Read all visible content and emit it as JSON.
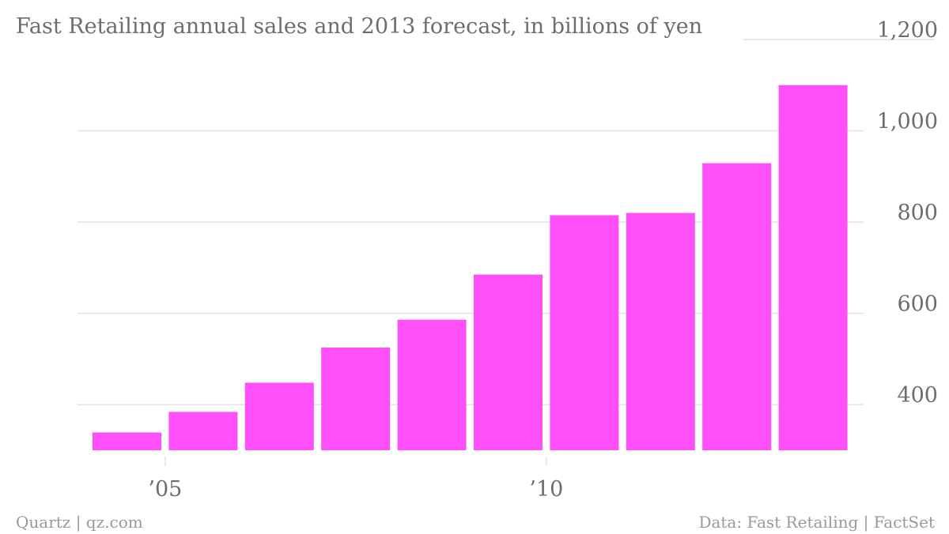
{
  "chart_data": {
    "type": "bar",
    "title": "Fast Retailing annual sales and 2013 forecast, in billions of yen",
    "categories": [
      "2004",
      "2005",
      "2006",
      "2007",
      "2008",
      "2009",
      "2010",
      "2011",
      "2012",
      "2013"
    ],
    "values": [
      339,
      384,
      448,
      525,
      586,
      685,
      815,
      820,
      929,
      1100
    ],
    "ylim": [
      300,
      1200
    ],
    "yticks": [
      400,
      600,
      800,
      1000,
      1200
    ],
    "ytick_labels": [
      "400",
      "600",
      "800",
      "1,000",
      "1,200"
    ],
    "xticks": [
      {
        "category": "2005",
        "label": "’05"
      },
      {
        "category": "2010",
        "label": "’10"
      }
    ],
    "bar_color": "#ff4ff9",
    "grid": true,
    "xlabel": "",
    "ylabel": ""
  },
  "footer": {
    "left": "Quartz | qz.com",
    "right": "Data: Fast Retailing | FactSet"
  }
}
